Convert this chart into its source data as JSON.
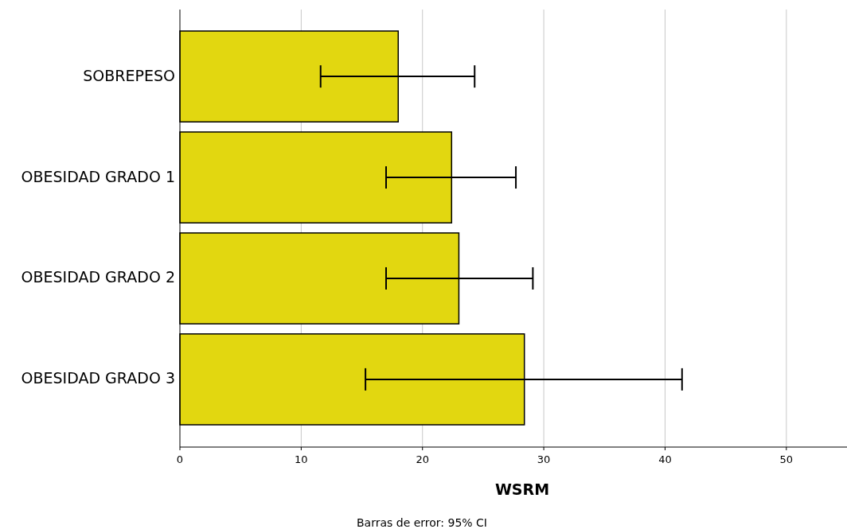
{
  "chart_data": {
    "type": "bar",
    "orientation": "horizontal",
    "categories": [
      "SOBREPESO",
      "OBESIDAD GRADO 1",
      "OBESIDAD GRADO 2",
      "OBESIDAD GRADO 3"
    ],
    "values": [
      18.0,
      22.4,
      23.0,
      28.4
    ],
    "errors": [
      [
        11.6,
        24.3
      ],
      [
        17.0,
        27.7
      ],
      [
        17.0,
        29.1
      ],
      [
        15.3,
        41.4
      ]
    ],
    "color": "#e2d710",
    "xlim": [
      0,
      55
    ],
    "xticks": [
      0,
      10,
      20,
      30,
      40,
      50
    ],
    "grid": "x",
    "xlabel": "WSRM",
    "annotations": [
      "Barras de error: 95% CI"
    ]
  }
}
